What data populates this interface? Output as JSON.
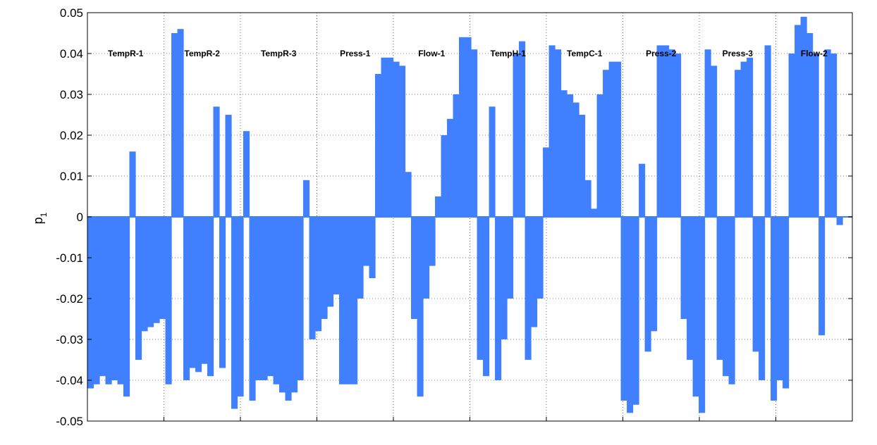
{
  "chart_data": {
    "type": "area",
    "ylabel": "p",
    "ylabel_sub": "1",
    "ylim": [
      -0.05,
      0.05
    ],
    "yticks": [
      "0.05",
      "0.04",
      "0.03",
      "0.02",
      "0.01",
      "0",
      "-0.01",
      "-0.02",
      "-0.03",
      "-0.04",
      "-0.05"
    ],
    "ytick_values": [
      0.05,
      0.04,
      0.03,
      0.02,
      0.01,
      0,
      -0.01,
      -0.02,
      -0.03,
      -0.04,
      -0.05
    ],
    "x_grid_count": 10,
    "grid": true,
    "color": "#4080ff",
    "segments": [
      "TempR-1",
      "TempR-2",
      "TempR-3",
      "Press-1",
      "Flow-1",
      "TempH-1",
      "TempC-1",
      "Press-2",
      "Press-3",
      "Flow-2"
    ],
    "series": [
      {
        "values": [
          -0.042,
          -0.041,
          -0.039,
          -0.041,
          -0.04,
          -0.041,
          -0.044,
          0.016,
          -0.035,
          -0.028,
          -0.027,
          -0.026,
          -0.025,
          -0.041,
          0.045,
          0.046,
          -0.04,
          -0.037,
          -0.038,
          -0.036,
          -0.039,
          0.027,
          -0.037,
          0.025,
          -0.047,
          -0.044,
          0.021,
          -0.045,
          -0.04,
          -0.04,
          -0.039,
          -0.041,
          -0.043,
          -0.045,
          -0.043,
          -0.04,
          0.009,
          -0.03,
          -0.028,
          -0.025,
          -0.022,
          -0.019,
          -0.041,
          -0.041,
          -0.041,
          -0.02,
          -0.012,
          -0.015,
          0.035,
          0.039,
          0.039,
          0.038,
          0.037,
          0.011,
          -0.025,
          -0.044,
          -0.02,
          -0.012,
          0.005,
          0.02,
          0.024,
          0.03,
          0.044,
          0.044,
          0.041,
          -0.035,
          -0.039,
          0.027,
          -0.04,
          -0.03,
          -0.02,
          0.04,
          0.043,
          -0.035,
          -0.027,
          -0.02,
          0.017,
          0.042,
          0.041,
          0.031,
          0.03,
          0.028,
          0.025,
          0.009,
          0.002,
          0.03,
          0.036,
          0.038,
          0.038,
          -0.045,
          -0.048,
          -0.046,
          0.013,
          -0.033,
          -0.028,
          0.042,
          0.042,
          0.041,
          0.04,
          -0.025,
          -0.035,
          -0.044,
          -0.048,
          0.041,
          0.037,
          -0.035,
          -0.039,
          -0.041,
          0.036,
          0.038,
          0.039,
          -0.033,
          -0.04,
          0.042,
          -0.045,
          -0.04,
          -0.042,
          0.04,
          0.047,
          0.049,
          0.045,
          0.04,
          -0.029,
          0.041,
          0.04,
          -0.002,
          0.0
        ]
      }
    ]
  }
}
